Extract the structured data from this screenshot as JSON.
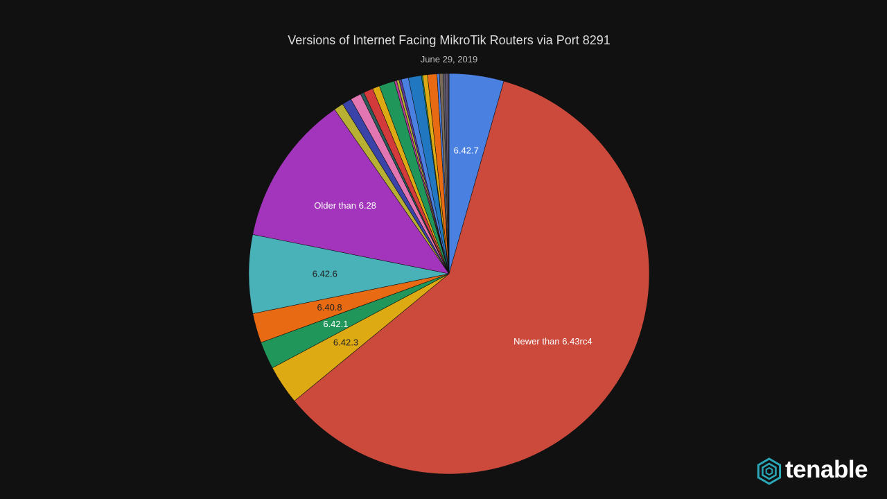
{
  "chart_data": {
    "type": "pie",
    "title": "Versions of Internet Facing MikroTik Routers via Port 8291",
    "subtitle": "June 29, 2019",
    "labels": [
      "6.42.7",
      "Newer than 6.43rc4",
      "6.42.3",
      "6.42.1",
      "6.40.8",
      "6.42.6",
      "Older than 6.28",
      "",
      "",
      "",
      "",
      "",
      "",
      "",
      "",
      "",
      "",
      "",
      "",
      "",
      "",
      "",
      "",
      "",
      "",
      "",
      ""
    ],
    "values": [
      4.6,
      62.2,
      3.3,
      2.3,
      2.5,
      6.6,
      12.7,
      0.8,
      0.8,
      0.9,
      0.3,
      0.8,
      0.6,
      1.3,
      0.2,
      0.2,
      0.2,
      0.6,
      1.1,
      0.1,
      0.4,
      0.8,
      0.2,
      0.3,
      0.2,
      0.2,
      0.1
    ],
    "colors": [
      "#4a80e0",
      "#cc4a3c",
      "#deaa14",
      "#20965a",
      "#e86a12",
      "#48b2b8",
      "#a235bc",
      "#b8b032",
      "#3a44a8",
      "#e276b2",
      "#2a5a5a",
      "#d23a3c",
      "#deaa14",
      "#20965a",
      "#b83e9e",
      "#b8b032",
      "#5e3a9a",
      "#4a80e0",
      "#2278c0",
      "#20965a",
      "#deaa14",
      "#e86a12",
      "#4a80e0",
      "#7a6a5a",
      "#5a5a6a",
      "#6a5a7a",
      "#4a4a5a"
    ],
    "label_colors": [
      "#ffffff",
      "#ffffff",
      "#222222",
      "#ffffff",
      "#222222",
      "#222222",
      "#ffffff"
    ],
    "start_angle_deg": 0,
    "direction": "clockwise"
  },
  "brand": {
    "name": "tenable"
  }
}
